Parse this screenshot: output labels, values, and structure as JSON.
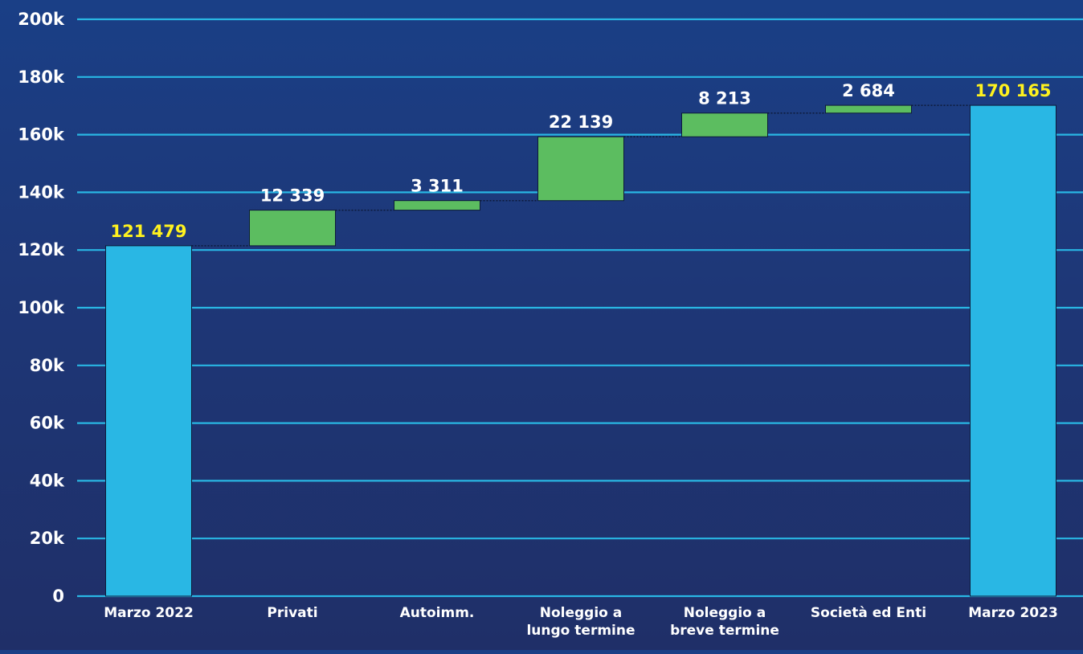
{
  "chart_data": {
    "type": "bar",
    "subtype": "waterfall",
    "categories": [
      [
        "Marzo 2022"
      ],
      [
        "Privati"
      ],
      [
        "Autoimm."
      ],
      [
        "Noleggio a",
        "lungo termine"
      ],
      [
        "Noleggio a",
        "breve termine"
      ],
      [
        "Società ed Enti"
      ],
      [
        "Marzo 2023"
      ]
    ],
    "bars": [
      {
        "kind": "total",
        "value": 121479,
        "label": "121 479"
      },
      {
        "kind": "increase",
        "value": 12339,
        "label": "12 339"
      },
      {
        "kind": "increase",
        "value": 3311,
        "label": "3 311"
      },
      {
        "kind": "increase",
        "value": 22139,
        "label": "22 139"
      },
      {
        "kind": "increase",
        "value": 8213,
        "label": "8 213"
      },
      {
        "kind": "increase",
        "value": 2684,
        "label": "2 684"
      },
      {
        "kind": "total",
        "value": 170165,
        "label": "170 165"
      }
    ],
    "ylim": [
      0,
      200000
    ],
    "yticks": [
      0,
      20000,
      40000,
      60000,
      80000,
      100000,
      120000,
      140000,
      160000,
      180000,
      200000
    ],
    "ytick_labels": [
      "0",
      "20k",
      "40k",
      "60k",
      "80k",
      "100k",
      "120k",
      "140k",
      "160k",
      "180k",
      "200k"
    ],
    "grid": true,
    "legend": "none",
    "colors": {
      "total": "#29b7e4",
      "increase": "#5cbd60",
      "gridline": "#29b7e4",
      "text": "#ffffff",
      "total_label": "#fff21e",
      "connector": "#0d1a3a"
    }
  }
}
